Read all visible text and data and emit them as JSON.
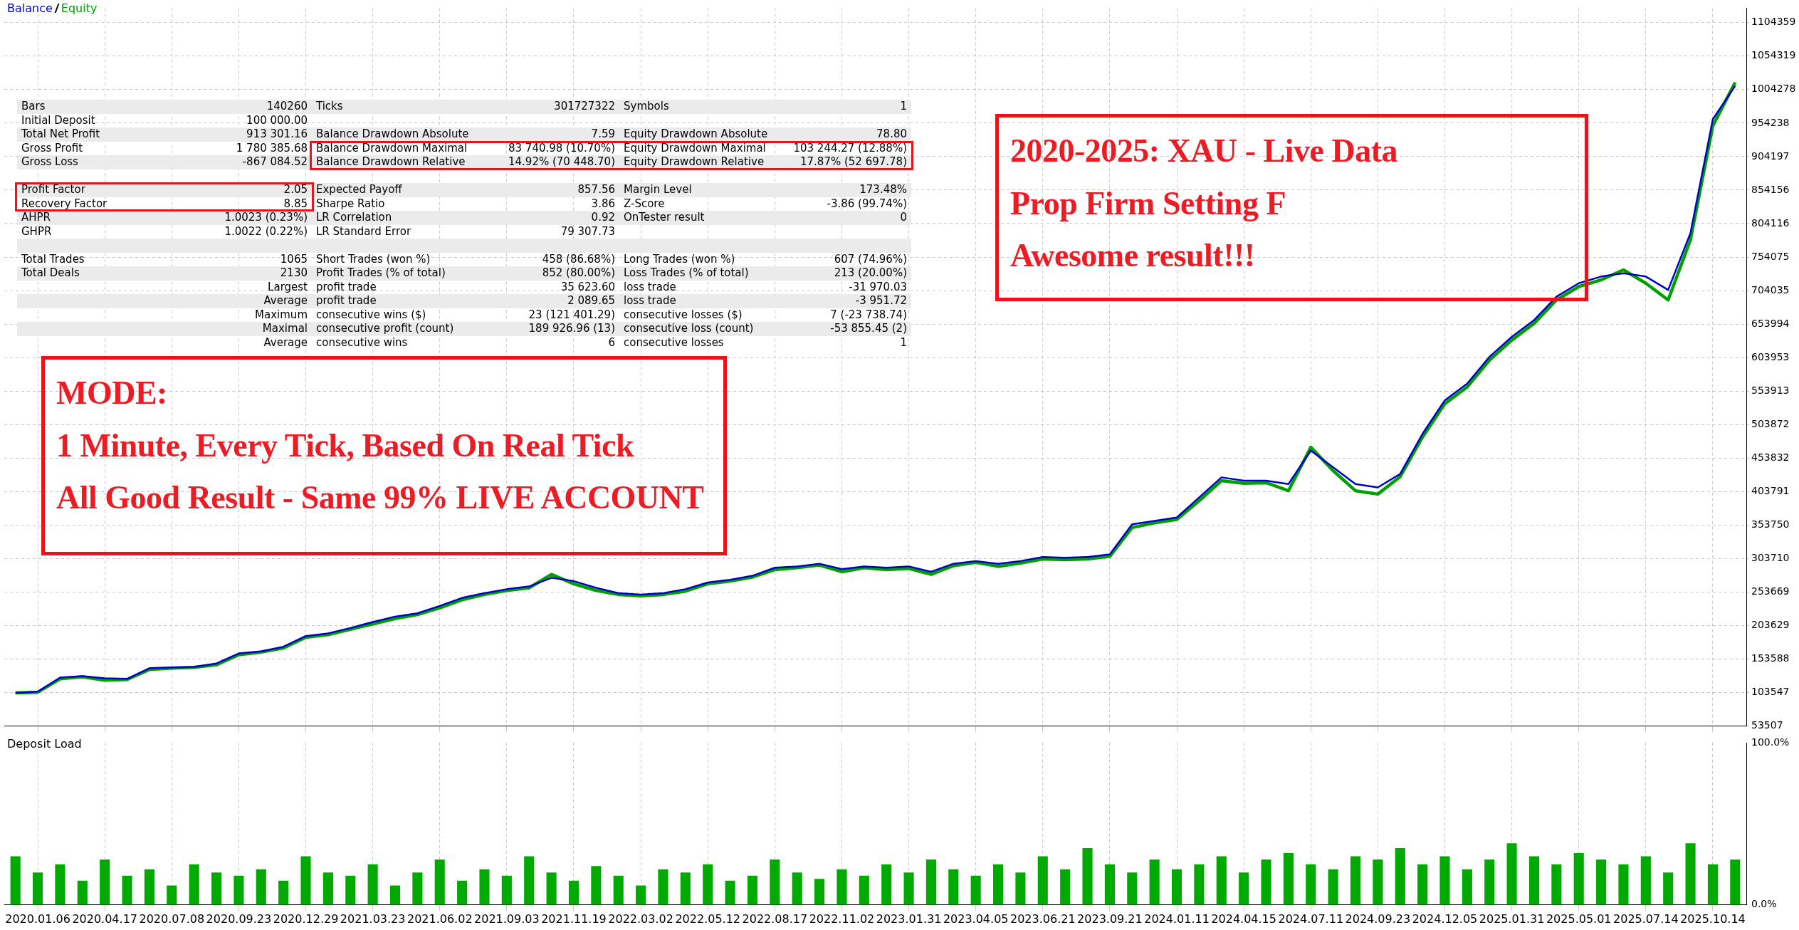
{
  "chart_data": [
    {
      "type": "line",
      "legend": "top left",
      "grid": true,
      "tick_labels": "y",
      "categories": [
        null,
        "2020.01.06",
        null,
        null,
        "2020.04.17",
        null,
        null,
        "2020.07.08",
        null,
        null,
        "2020.09.23",
        null,
        null,
        "2020.12.29",
        null,
        null,
        "2021.03.23",
        null,
        null,
        "2021.06.02",
        null,
        null,
        "2021.09.03",
        null,
        null,
        "2021.11.19",
        null,
        null,
        "2022.03.02",
        null,
        null,
        "2022.05.12",
        null,
        null,
        "2022.08.17",
        null,
        null,
        "2022.11.02",
        null,
        null,
        "2023.01.31",
        null,
        null,
        "2023.04.05",
        null,
        null,
        "2023.06.21",
        null,
        null,
        "2023.09.21",
        null,
        null,
        "2024.01.11",
        null,
        null,
        "2024.04.15",
        null,
        null,
        "2024.07.11",
        null,
        null,
        "2024.09.23",
        null,
        null,
        "2024.12.05",
        null,
        null,
        "2025.01.31",
        null,
        null,
        "2025.05.01",
        null,
        null,
        "2025.07.14",
        null,
        null,
        "2025.10.14",
        null
      ],
      "ylim": [
        53507,
        1126000
      ],
      "yticks": [
        53507,
        103547,
        153588,
        203629,
        253669,
        303710,
        353750,
        403791,
        453832,
        503872,
        553913,
        603953,
        653994,
        704035,
        754075,
        804116,
        854156,
        904197,
        954238,
        1004278,
        1054319,
        1104359
      ],
      "series": [
        {
          "name": "Balance",
          "color": "#0000c8",
          "values": [
            103000,
            105000,
            126000,
            128000,
            125000,
            124000,
            140000,
            141000,
            142000,
            147000,
            162000,
            165000,
            172000,
            188000,
            192000,
            200000,
            209000,
            217000,
            222000,
            233000,
            245000,
            252000,
            258000,
            262000,
            275000,
            270000,
            260000,
            252000,
            250000,
            252000,
            258000,
            268000,
            272000,
            278000,
            290000,
            292000,
            296000,
            288000,
            292000,
            290000,
            292000,
            284000,
            296000,
            300000,
            296000,
            300000,
            306000,
            305000,
            306000,
            310000,
            355000,
            360000,
            365000,
            395000,
            425000,
            420000,
            420000,
            415000,
            465000,
            440000,
            415000,
            410000,
            430000,
            490000,
            540000,
            565000,
            605000,
            635000,
            660000,
            695000,
            715000,
            725000,
            730000,
            725000,
            705000,
            790000,
            960000,
            1010000
          ]
        },
        {
          "name": "Equity",
          "color": "#00a000",
          "values": [
            103000,
            104000,
            124000,
            127000,
            122000,
            123000,
            138000,
            140000,
            141000,
            145000,
            160000,
            164000,
            170000,
            186000,
            190000,
            198000,
            206000,
            214000,
            220000,
            230000,
            242000,
            250000,
            256000,
            260000,
            280000,
            266000,
            256000,
            250000,
            248000,
            250000,
            255000,
            266000,
            270000,
            276000,
            287000,
            290000,
            294000,
            284000,
            290000,
            287000,
            289000,
            280000,
            293000,
            298000,
            292000,
            297000,
            303000,
            302000,
            303000,
            307000,
            350000,
            357000,
            362000,
            390000,
            420000,
            416000,
            417000,
            405000,
            470000,
            435000,
            405000,
            400000,
            426000,
            485000,
            535000,
            560000,
            600000,
            630000,
            655000,
            690000,
            710000,
            720000,
            735000,
            715000,
            690000,
            780000,
            950000,
            1015000
          ]
        }
      ],
      "annotations": [
        "2020-2025: XAU - Live Data\nProp Firm Setting F\nAwesome result!!!",
        "MODE:\n1 Minute, Every Tick, Based On Real Tick\nAll Good Result - Same 99% LIVE ACCOUNT"
      ]
    },
    {
      "type": "other",
      "cell_labels": [
        [
          "Bars",
          "140260",
          "Ticks",
          "301727322",
          "Symbols",
          "1"
        ],
        [
          "Initial Deposit",
          "100 000.00",
          null,
          null,
          null,
          null
        ],
        [
          "Total Net Profit",
          "913 301.16",
          "Balance Drawdown Absolute",
          "7.59",
          "Equity Drawdown Absolute",
          "78.80"
        ],
        [
          "Gross Profit",
          "1 780 385.68",
          "Balance Drawdown Maximal",
          "83 740.98 (10.70%)",
          "Equity Drawdown Maximal",
          "103 244.27 (12.88%)"
        ],
        [
          "Gross Loss",
          "-867 084.52",
          "Balance Drawdown Relative",
          "14.92% (70 448.70)",
          "Equity Drawdown Relative",
          "17.87% (52 697.78)"
        ],
        [
          null,
          null,
          null,
          null,
          null,
          null
        ],
        [
          "Profit Factor",
          "2.05",
          "Expected Payoff",
          "857.56",
          "Margin Level",
          "173.48%"
        ],
        [
          "Recovery Factor",
          "8.85",
          "Sharpe Ratio",
          "3.86",
          "Z-Score",
          "-3.86 (99.74%)"
        ],
        [
          "AHPR",
          "1.0023 (0.23%)",
          "LR Correlation",
          "0.92",
          "OnTester result",
          "0"
        ],
        [
          "GHPR",
          "1.0022 (0.22%)",
          "LR Standard Error",
          "79 307.73",
          null,
          null
        ],
        [
          null,
          null,
          null,
          null,
          null,
          null
        ],
        [
          "Total Trades",
          "1065",
          "Short Trades (won %)",
          "458 (86.68%)",
          "Long Trades (won %)",
          "607 (74.96%)"
        ],
        [
          "Total Deals",
          "2130",
          "Profit Trades (% of total)",
          "852 (80.00%)",
          "Loss Trades (% of total)",
          "213 (20.00%)"
        ],
        [
          null,
          "Largest",
          "profit trade",
          "35 623.60",
          "loss trade",
          "-31 970.03"
        ],
        [
          null,
          "Average",
          "profit trade",
          "2 089.65",
          "loss trade",
          "-3 951.72"
        ],
        [
          null,
          "Maximum",
          "consecutive wins ($)",
          "23 (121 401.29)",
          "consecutive losses ($)",
          "7 (-23 738.74)"
        ],
        [
          null,
          "Maximal",
          "consecutive profit (count)",
          "189 926.96 (13)",
          "consecutive loss (count)",
          "-53 855.45 (2)"
        ],
        [
          null,
          "Average",
          "consecutive wins",
          "6",
          "consecutive losses",
          "1"
        ]
      ]
    },
    {
      "type": "bar",
      "title": "Deposit Load",
      "grid": "x",
      "color": "#00aa00",
      "categories": [
        null,
        "2020.01.06",
        null,
        null,
        "2020.04.17",
        null,
        null,
        "2020.07.08",
        null,
        null,
        "2020.09.23",
        null,
        null,
        "2020.12.29",
        null,
        null,
        "2021.03.23",
        null,
        null,
        "2021.06.02",
        null,
        null,
        "2021.09.03",
        null,
        null,
        "2021.11.19",
        null,
        null,
        "2022.03.02",
        null,
        null,
        "2022.05.12",
        null,
        null,
        "2022.08.17",
        null,
        null,
        "2022.11.02",
        null,
        null,
        "2023.01.31",
        null,
        null,
        "2023.04.05",
        null,
        null,
        "2023.06.21",
        null,
        null,
        "2023.09.21",
        null,
        null,
        "2024.01.11",
        null,
        null,
        "2024.04.15",
        null,
        null,
        "2024.07.11",
        null,
        null,
        "2024.09.23",
        null,
        null,
        "2024.12.05",
        null,
        null,
        "2025.01.31",
        null,
        null,
        "2025.05.01",
        null,
        null,
        "2025.07.14",
        null,
        null,
        "2025.10.14",
        null
      ],
      "values": [
        30,
        20,
        25,
        15,
        28,
        18,
        22,
        12,
        25,
        20,
        18,
        22,
        15,
        30,
        20,
        18,
        25,
        12,
        20,
        28,
        15,
        22,
        18,
        30,
        20,
        15,
        24,
        18,
        12,
        22,
        20,
        25,
        15,
        18,
        28,
        20,
        16,
        22,
        18,
        25,
        20,
        28,
        22,
        18,
        25,
        20,
        30,
        22,
        35,
        25,
        20,
        28,
        22,
        25,
        30,
        20,
        28,
        32,
        25,
        22,
        30,
        28,
        35,
        25,
        30,
        22,
        28,
        38,
        30,
        25,
        32,
        28,
        25,
        30,
        20,
        38,
        25,
        28
      ],
      "ylim": [
        0,
        100
      ],
      "yticks": [
        {
          "value": 0,
          "label": "0.0%"
        },
        {
          "value": 100,
          "label": "100.0%"
        }
      ]
    }
  ]
}
